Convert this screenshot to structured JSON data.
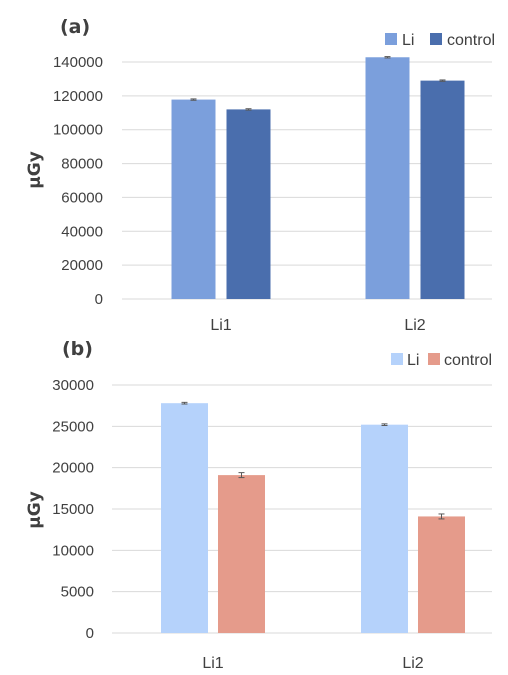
{
  "chart_data": [
    {
      "type": "bar",
      "panel_label": "(a)",
      "ylabel": "μGy",
      "categories": [
        "Li1",
        "Li2"
      ],
      "series": [
        {
          "name": "Li",
          "values": [
            117800,
            142800
          ],
          "errors": [
            400,
            400
          ],
          "color": "#7b9fdc"
        },
        {
          "name": "control",
          "values": [
            112000,
            129000
          ],
          "errors": [
            400,
            400
          ],
          "color": "#4a6ead"
        }
      ],
      "ylim": [
        0,
        140000
      ],
      "yticks": [
        "0",
        "20000",
        "40000",
        "60000",
        "80000",
        "100000",
        "120000",
        "140000"
      ],
      "grid": true,
      "legend_position": "top-right"
    },
    {
      "type": "bar",
      "panel_label": "(b)",
      "ylabel": "μGy",
      "categories": [
        "Li1",
        "Li2"
      ],
      "series": [
        {
          "name": "Li",
          "values": [
            27800,
            25200
          ],
          "errors": [
            100,
            100
          ],
          "color": "#b5d2fb"
        },
        {
          "name": "control",
          "values": [
            19100,
            14100
          ],
          "errors": [
            300,
            300
          ],
          "color": "#e59b8b"
        }
      ],
      "ylim": [
        0,
        30000
      ],
      "yticks": [
        "0",
        "5000",
        "10000",
        "15000",
        "20000",
        "25000",
        "30000"
      ],
      "grid": true,
      "legend_position": "top-right"
    }
  ]
}
